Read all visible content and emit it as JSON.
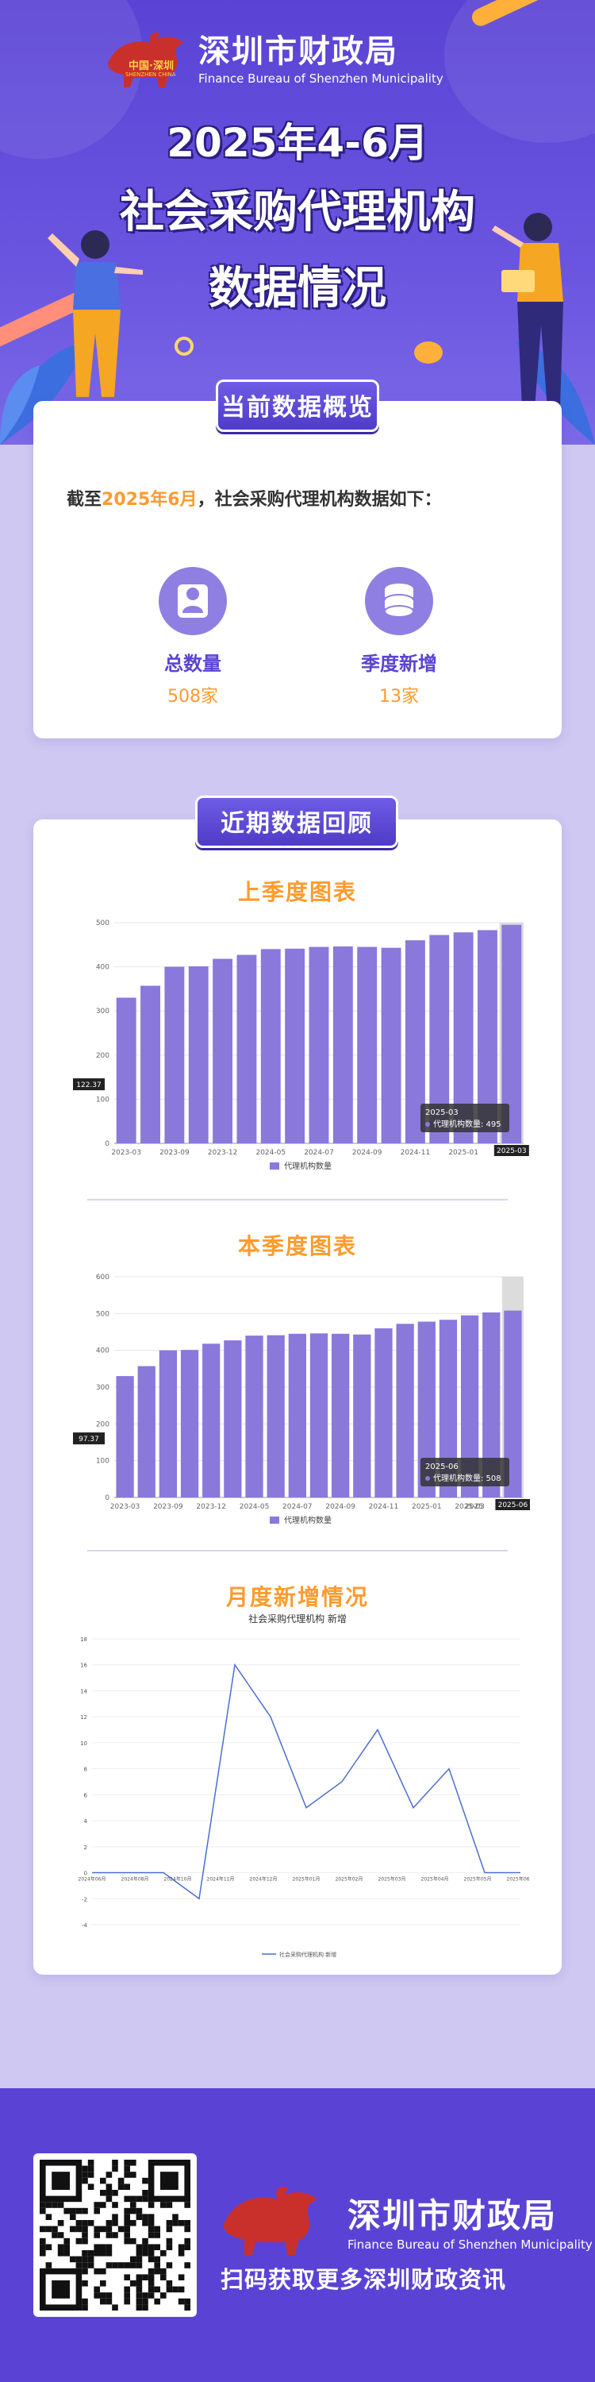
{
  "header": {
    "org_cn": "深圳市财政局",
    "org_en": "Finance Bureau of Shenzhen Municipality",
    "seal_text": "中国·深圳",
    "seal_sub": "SHENZHEN CHINA",
    "title_line1": "2025年4-6月",
    "title_line2": "社会采购代理机构",
    "title_line3": "数据情况"
  },
  "overview": {
    "tab_label": "当前数据概览",
    "intro_prefix": "截至",
    "intro_highlight": "2025年6月",
    "intro_suffix": "，社会采购代理机构数据如下：",
    "stats": [
      {
        "label": "总数量",
        "value": "508家",
        "icon": "user-icon"
      },
      {
        "label": "季度新增",
        "value": "13家",
        "icon": "database-icon"
      }
    ]
  },
  "review": {
    "tab_label": "近期数据回顾",
    "sections": [
      "上季度图表",
      "本季度图表",
      "月度新增情况"
    ]
  },
  "chart_data": [
    {
      "type": "bar",
      "title": "上季度图表",
      "categories": [
        "2023-03",
        "2023-06",
        "2023-09",
        "2023-10",
        "2023-12",
        "2024-01",
        "2024-05",
        "2024-06",
        "2024-07",
        "2024-08",
        "2024-09",
        "2024-10",
        "2024-11",
        "2024-12",
        "2025-01",
        "2025-02",
        "2025-03"
      ],
      "tick_labels": [
        "2023-03",
        "2023-09",
        "2023-12",
        "2024-05",
        "2024-07",
        "2024-09",
        "2024-11",
        "2025-01",
        "2025-03"
      ],
      "series": [
        {
          "name": "代理机构数量",
          "values": [
            330,
            357,
            400,
            401,
            418,
            427,
            440,
            441,
            445,
            446,
            445,
            443,
            460,
            472,
            478,
            483,
            495
          ]
        }
      ],
      "ylim": [
        0,
        500
      ],
      "yticks": [
        0,
        100,
        200,
        300,
        400,
        500
      ],
      "legend": "bottom-center",
      "grid": true,
      "tooltip": {
        "category": "2025-03",
        "line": "代理机构数量: 495"
      },
      "axis_pointer_y": "122.37"
    },
    {
      "type": "bar",
      "title": "本季度图表",
      "categories": [
        "2023-03",
        "2023-06",
        "2023-09",
        "2023-10",
        "2023-12",
        "2024-01",
        "2024-05",
        "2024-06",
        "2024-07",
        "2024-08",
        "2024-09",
        "2024-10",
        "2024-11",
        "2024-12",
        "2025-01",
        "2025-02",
        "2025-03",
        "2025-04",
        "2025-06"
      ],
      "tick_labels": [
        "2023-03",
        "2023-09",
        "2023-12",
        "2024-05",
        "2024-07",
        "2024-09",
        "2024-11",
        "2025-01",
        "2025-03",
        "2025",
        "2025-06"
      ],
      "series": [
        {
          "name": "代理机构数量",
          "values": [
            330,
            357,
            400,
            401,
            418,
            427,
            440,
            441,
            445,
            446,
            445,
            443,
            460,
            472,
            478,
            483,
            495,
            503,
            508
          ]
        }
      ],
      "ylim": [
        0,
        600
      ],
      "yticks": [
        0,
        100,
        200,
        300,
        400,
        500,
        600
      ],
      "legend": "bottom-center",
      "grid": true,
      "tooltip": {
        "category": "2025-06",
        "line": "代理机构数量: 508"
      },
      "axis_pointer_y": "97.37"
    },
    {
      "type": "line",
      "title": "月度新增情况",
      "subtitle": "社会采购代理机构 新增",
      "x": [
        "2024年06月",
        "2024年07月",
        "2024年08月",
        "2024年09月",
        "2024年10月",
        "2024年11月",
        "2024年12月",
        "2025年01月",
        "2025年02月",
        "2025年03月",
        "2025年04月",
        "2025年05月",
        "2025年06月"
      ],
      "x_tick_labels": [
        "2024年06月",
        "2024年08月",
        "2024年10月",
        "2024年11月",
        "2024年12月",
        "2025年01月",
        "2025年02月",
        "2025年03月",
        "2025年04月",
        "2025年05月",
        "2025年06月"
      ],
      "series": [
        {
          "name": "社会采购代理机构 新增",
          "values": [
            0,
            0,
            0,
            -2,
            16,
            12,
            5,
            7,
            11,
            5,
            8,
            0,
            0
          ]
        }
      ],
      "ylim": [
        -4,
        18
      ],
      "yticks": [
        -4,
        -2,
        0,
        2,
        4,
        6,
        8,
        10,
        12,
        14,
        16,
        18
      ],
      "legend": "bottom-center",
      "grid": true
    }
  ],
  "footer": {
    "org_cn": "深圳市财政局",
    "org_en": "Finance Bureau of Shenzhen Municipality",
    "caption": "扫码获取更多深圳财政资讯"
  },
  "colors": {
    "brand": "#5a43d4",
    "bar": "#8a78db",
    "accent": "#ff9b2e",
    "line": "#4a6fd1"
  }
}
